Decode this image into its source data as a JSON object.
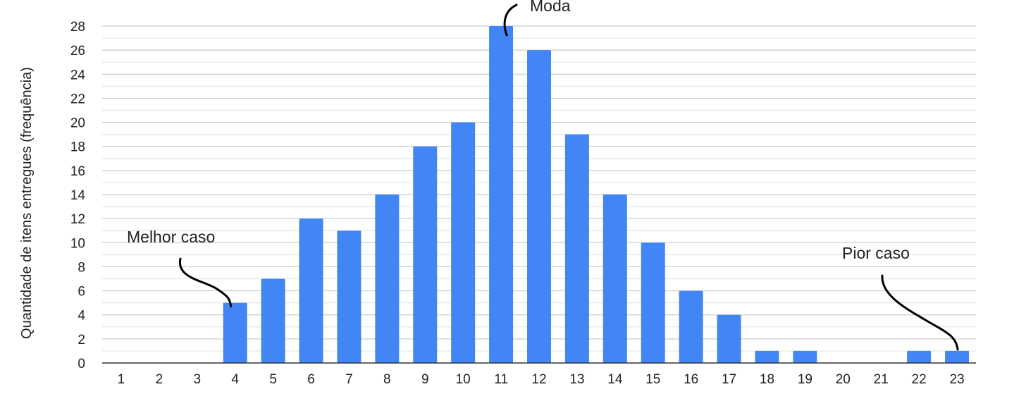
{
  "chart_data": {
    "type": "bar",
    "title": "",
    "xlabel": "",
    "ylabel": "Quantidade de itens entregues (frequência)",
    "categories": [
      "1",
      "2",
      "3",
      "4",
      "5",
      "6",
      "7",
      "8",
      "9",
      "10",
      "11",
      "12",
      "13",
      "14",
      "15",
      "16",
      "17",
      "18",
      "19",
      "20",
      "21",
      "22",
      "23"
    ],
    "values": [
      0,
      0,
      0,
      5,
      7,
      12,
      11,
      14,
      18,
      20,
      28,
      26,
      19,
      14,
      10,
      6,
      4,
      1,
      1,
      0,
      0,
      1,
      1
    ],
    "ylim": [
      0,
      28
    ],
    "yticks": [
      0,
      2,
      4,
      6,
      8,
      10,
      12,
      14,
      16,
      18,
      20,
      22,
      24,
      26,
      28
    ],
    "grid": true,
    "legend": "none",
    "bar_color": "#4285f4",
    "grid_color": "#cccccc",
    "annotations": [
      {
        "label": "Melhor caso",
        "category": "4",
        "value": 5
      },
      {
        "label": "Moda",
        "category": "11",
        "value": 28
      },
      {
        "label": "Pior caso",
        "category": "23",
        "value": 1
      }
    ]
  }
}
